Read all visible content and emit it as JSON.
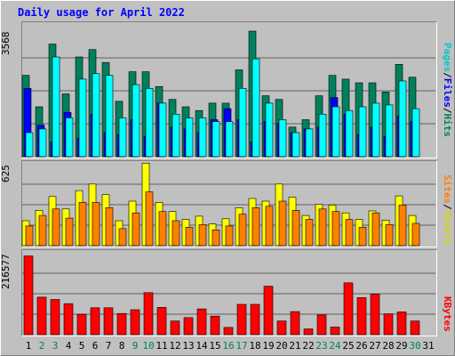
{
  "title": "Daily usage for April 2022",
  "colors": {
    "hits": "#00805c",
    "files": "#0000ff",
    "pages": "#00ffff",
    "visits": "#ffff00",
    "sites": "#ff8000",
    "kbytes": "#ff0000",
    "weekday_label": "#000000",
    "weekend_label": "#00805c"
  },
  "chart_data": [
    {
      "type": "bar",
      "name": "hits-files-pages",
      "ymax_label": "3568",
      "ylim": [
        0,
        3568
      ],
      "legend": [
        "Pages",
        "Files",
        "Hits"
      ],
      "categories": [
        "1",
        "2",
        "3",
        "4",
        "5",
        "6",
        "7",
        "8",
        "9",
        "10",
        "11",
        "12",
        "13",
        "14",
        "15",
        "16",
        "17",
        "18",
        "19",
        "20",
        "21",
        "22",
        "23",
        "24",
        "25",
        "26",
        "27",
        "28",
        "29",
        "30",
        "31"
      ],
      "series": [
        {
          "name": "Hits",
          "values": [
            2200,
            1350,
            3050,
            1700,
            2700,
            2900,
            2550,
            1500,
            2300,
            2300,
            1900,
            1550,
            1350,
            1250,
            1450,
            1450,
            2350,
            3400,
            1650,
            1550,
            800,
            1000,
            1650,
            2200,
            2100,
            2000,
            2000,
            1750,
            2500,
            2150,
            0
          ]
        },
        {
          "name": "Files",
          "values": [
            1850,
            850,
            400,
            1200,
            500,
            1150,
            650,
            600,
            1000,
            550,
            1450,
            800,
            750,
            650,
            1000,
            1300,
            1000,
            400,
            950,
            900,
            650,
            750,
            800,
            1600,
            1150,
            600,
            800,
            550,
            1100,
            950,
            0
          ]
        },
        {
          "name": "Pages",
          "values": [
            650,
            750,
            2700,
            1050,
            2100,
            2250,
            2200,
            1050,
            1950,
            1850,
            1450,
            1150,
            1050,
            1050,
            950,
            950,
            1850,
            2650,
            1450,
            1000,
            650,
            750,
            1150,
            1350,
            1250,
            1350,
            1450,
            1400,
            2050,
            1300,
            0
          ]
        }
      ]
    },
    {
      "type": "bar",
      "name": "visits-sites",
      "ymax_label": "625",
      "ylim": [
        0,
        625
      ],
      "legend": [
        "Sites",
        "Visits"
      ],
      "categories": [
        "1",
        "2",
        "3",
        "4",
        "5",
        "6",
        "7",
        "8",
        "9",
        "10",
        "11",
        "12",
        "13",
        "14",
        "15",
        "16",
        "17",
        "18",
        "19",
        "20",
        "21",
        "22",
        "23",
        "24",
        "25",
        "26",
        "27",
        "28",
        "29",
        "30",
        "31"
      ],
      "series": [
        {
          "name": "Visits",
          "values": [
            190,
            270,
            375,
            280,
            420,
            470,
            390,
            190,
            340,
            630,
            330,
            260,
            200,
            225,
            165,
            205,
            290,
            360,
            340,
            470,
            370,
            230,
            315,
            310,
            250,
            200,
            265,
            195,
            380,
            230,
            0
          ]
        },
        {
          "name": "Sites",
          "values": [
            150,
            230,
            280,
            210,
            330,
            330,
            290,
            130,
            250,
            410,
            260,
            190,
            140,
            160,
            120,
            150,
            240,
            290,
            300,
            340,
            270,
            200,
            280,
            260,
            200,
            140,
            250,
            160,
            310,
            170,
            0
          ]
        }
      ]
    },
    {
      "type": "bar",
      "name": "kbytes",
      "ymax_label": "216577",
      "ylim": [
        0,
        216577
      ],
      "legend": [
        "KBytes"
      ],
      "categories": [
        "1",
        "2",
        "3",
        "4",
        "5",
        "6",
        "7",
        "8",
        "9",
        "10",
        "11",
        "12",
        "13",
        "14",
        "15",
        "16",
        "17",
        "18",
        "19",
        "20",
        "21",
        "22",
        "23",
        "24",
        "25",
        "26",
        "27",
        "28",
        "29",
        "30",
        "31"
      ],
      "series": [
        {
          "name": "KBytes",
          "values": [
            208000,
            99000,
            93000,
            82000,
            54000,
            71000,
            71000,
            56000,
            66000,
            111000,
            72000,
            36000,
            45000,
            68000,
            49000,
            19000,
            80000,
            80000,
            128000,
            36000,
            61000,
            15000,
            52000,
            20000,
            137000,
            98000,
            107000,
            55000,
            60000,
            36000,
            0
          ]
        }
      ]
    }
  ]
}
